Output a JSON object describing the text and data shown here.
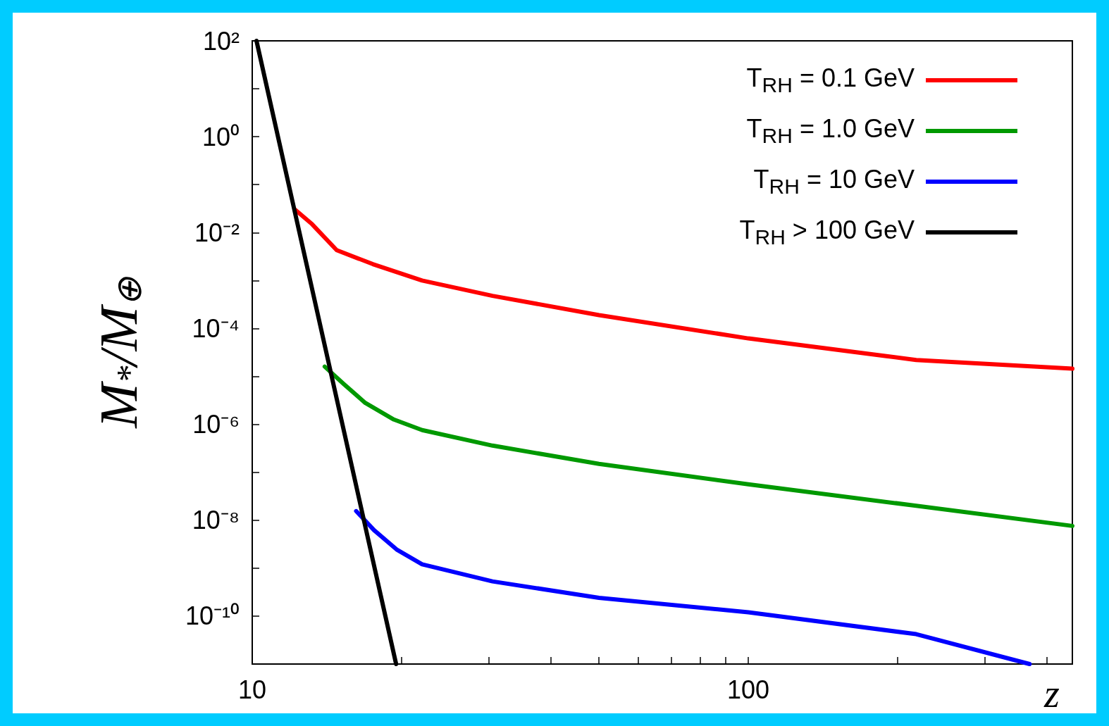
{
  "chart_data": {
    "type": "line",
    "xlabel": "z",
    "ylabel": "M$_{*}$/M$_{⊕}$",
    "log": "xy",
    "grid": false,
    "legend": "top right",
    "marker": "none",
    "line_style": "solid",
    "xlim": [
      10,
      450
    ],
    "ylim": [
      1e-11,
      100
    ],
    "xticks": [
      10,
      {
        "value": 20,
        "label": null
      },
      {
        "value": 30,
        "label": null
      },
      {
        "value": 40,
        "label": null
      },
      {
        "value": 50,
        "label": null
      },
      {
        "value": 60,
        "label": null
      },
      {
        "value": 70,
        "label": null
      },
      {
        "value": 80,
        "label": null
      },
      {
        "value": 90,
        "label": null
      },
      100,
      {
        "value": 200,
        "label": null
      },
      {
        "value": 300,
        "label": null
      },
      {
        "value": 400,
        "label": null
      }
    ],
    "yticks": [
      {
        "value": 100,
        "label": "10²"
      },
      {
        "value": 10,
        "label": null
      },
      {
        "value": 1,
        "label": "10⁰"
      },
      {
        "value": 0.1,
        "label": null
      },
      {
        "value": 0.01,
        "label": "10⁻²"
      },
      {
        "value": 0.001,
        "label": null
      },
      {
        "value": 0.0001,
        "label": "10⁻⁴"
      },
      {
        "value": 1e-05,
        "label": null
      },
      {
        "value": 1e-06,
        "label": "10⁻⁶"
      },
      {
        "value": 1e-07,
        "label": null
      },
      {
        "value": 1e-08,
        "label": "10⁻⁸"
      },
      {
        "value": 1e-09,
        "label": null
      },
      {
        "value": 1e-10,
        "label": "10⁻¹⁰"
      }
    ],
    "series": [
      {
        "name": "T$_{RH}$ = 0.1 GeV",
        "color": "#ff0000",
        "x": [
          12.2,
          13.2,
          14.8,
          17.5,
          22,
          30.5,
          50,
          100,
          218,
          450
        ],
        "values": [
          0.03,
          0.015,
          0.0043,
          0.0022,
          0.001,
          0.00048,
          0.00019,
          6.2e-05,
          2.2e-05,
          1.45e-05
        ]
      },
      {
        "name": "T$_{RH}$ = 1.0 GeV",
        "color": "#009900",
        "x": [
          14.0,
          15.3,
          16.9,
          19.3,
          22,
          30.5,
          50,
          100,
          218,
          450
        ],
        "values": [
          1.6e-05,
          6.9e-06,
          2.8e-06,
          1.26e-06,
          7.6e-07,
          3.6e-07,
          1.5e-07,
          5.6e-08,
          2e-08,
          7.6e-09
        ]
      },
      {
        "name": "T$_{RH}$ = 10 GeV",
        "color": "#0000ff",
        "x": [
          16.2,
          17.6,
          19.6,
          22,
          30.5,
          50,
          100,
          218,
          369
        ],
        "values": [
          1.55e-08,
          6.2e-09,
          2.4e-09,
          1.2e-09,
          5.3e-10,
          2.4e-10,
          1.2e-10,
          4.2e-11,
          1e-11
        ]
      },
      {
        "name": "T$_{RH}$ > 100 GeV",
        "color": "#000000",
        "x": [
          10.2,
          19.5
        ],
        "values": [
          100,
          1e-11
        ]
      }
    ]
  }
}
